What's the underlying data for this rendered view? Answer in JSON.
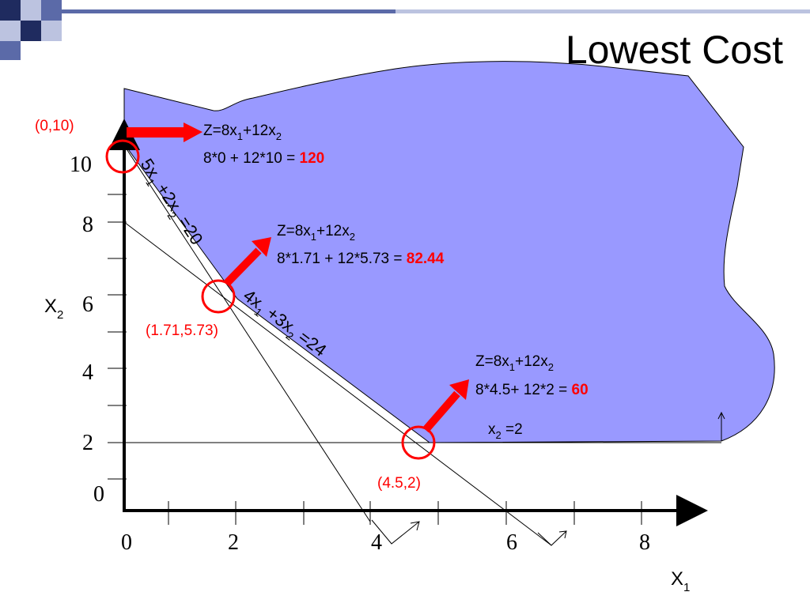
{
  "title": "Lowest Cost",
  "colors": {
    "feasible_region": "#9999ff",
    "highlight": "#ff0000",
    "axis": "#000000",
    "deco_navy": "#1f2b5f",
    "deco_blue": "#5b6aa8",
    "deco_gray": "#bcc3e0"
  },
  "axes": {
    "x_label": "X",
    "x_sub": "1",
    "y_label": "X",
    "y_sub": "2",
    "x_ticks": [
      "0",
      "2",
      "4",
      "6",
      "8"
    ],
    "y_ticks": [
      "0",
      "2",
      "4",
      "6",
      "8",
      "10"
    ]
  },
  "constraints": [
    {
      "id": "c1",
      "parts": [
        "5x",
        "1",
        " +2x",
        "2",
        " =20"
      ]
    },
    {
      "id": "c2",
      "parts": [
        "4x",
        "1",
        " +3x",
        "2",
        " =24"
      ]
    },
    {
      "id": "c3",
      "parts": [
        "x",
        "2",
        " =2"
      ]
    }
  ],
  "vertices": [
    {
      "id": "v1",
      "point": "(0,10)",
      "objective_parts": [
        "Z=8x",
        "1",
        "+12x",
        "2"
      ],
      "calc": "8*0 + 12*10 = ",
      "value": "120"
    },
    {
      "id": "v2",
      "point": "(1.71,5.73)",
      "objective_parts": [
        "Z=8x",
        "1",
        "+12x",
        "2"
      ],
      "calc": "8*1.71 + 12*5.73 = ",
      "value": "82.44"
    },
    {
      "id": "v3",
      "point": "(4.5,2)",
      "objective_parts": [
        "Z=8x",
        "1",
        "+12x",
        "2"
      ],
      "calc": "8*4.5+ 12*2 = ",
      "value": "60"
    }
  ]
}
